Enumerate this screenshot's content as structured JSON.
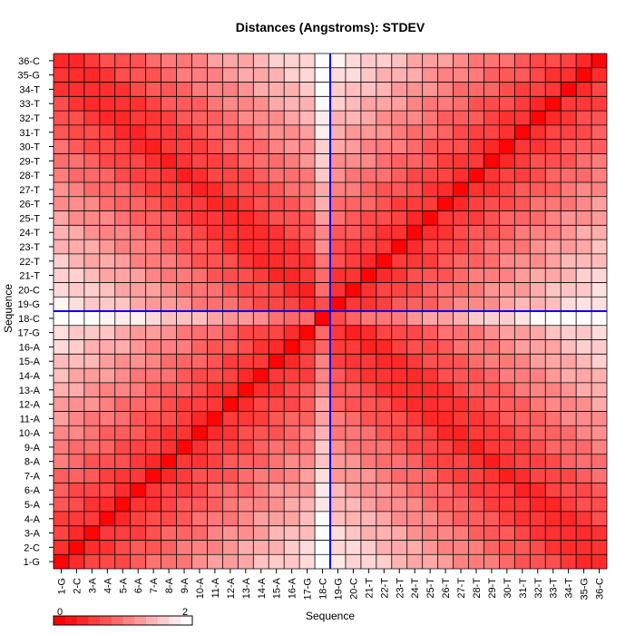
{
  "chart_data": {
    "type": "heatmap",
    "title": "Distances (Angstroms):  STDEV",
    "xlabel": "Sequence",
    "ylabel": "Sequence",
    "categories": [
      "1-G",
      "2-C",
      "3-A",
      "4-A",
      "5-A",
      "6-A",
      "7-A",
      "8-A",
      "9-A",
      "10-A",
      "11-A",
      "12-A",
      "13-A",
      "14-A",
      "15-A",
      "16-A",
      "17-G",
      "18-C",
      "19-G",
      "20-C",
      "21-T",
      "22-T",
      "23-T",
      "24-T",
      "25-T",
      "26-T",
      "27-T",
      "28-T",
      "29-T",
      "30-T",
      "31-T",
      "32-T",
      "33-T",
      "34-T",
      "35-G",
      "36-C"
    ],
    "colorbar": {
      "min_label": "0",
      "max_label": "2",
      "min": 0,
      "max": 2,
      "low_color": "#ff0000",
      "high_color": "#ffffff"
    },
    "highlight": {
      "index": "18-C",
      "color": "#0000ff"
    },
    "value_model": "value(i,j) ≈ 0.35 + 1.5 * min(|i-j|, |i+j-37|)/17 + ripple; diagonal and anti-diagonal lowest, 18-C row/column highest",
    "grid": true
  }
}
